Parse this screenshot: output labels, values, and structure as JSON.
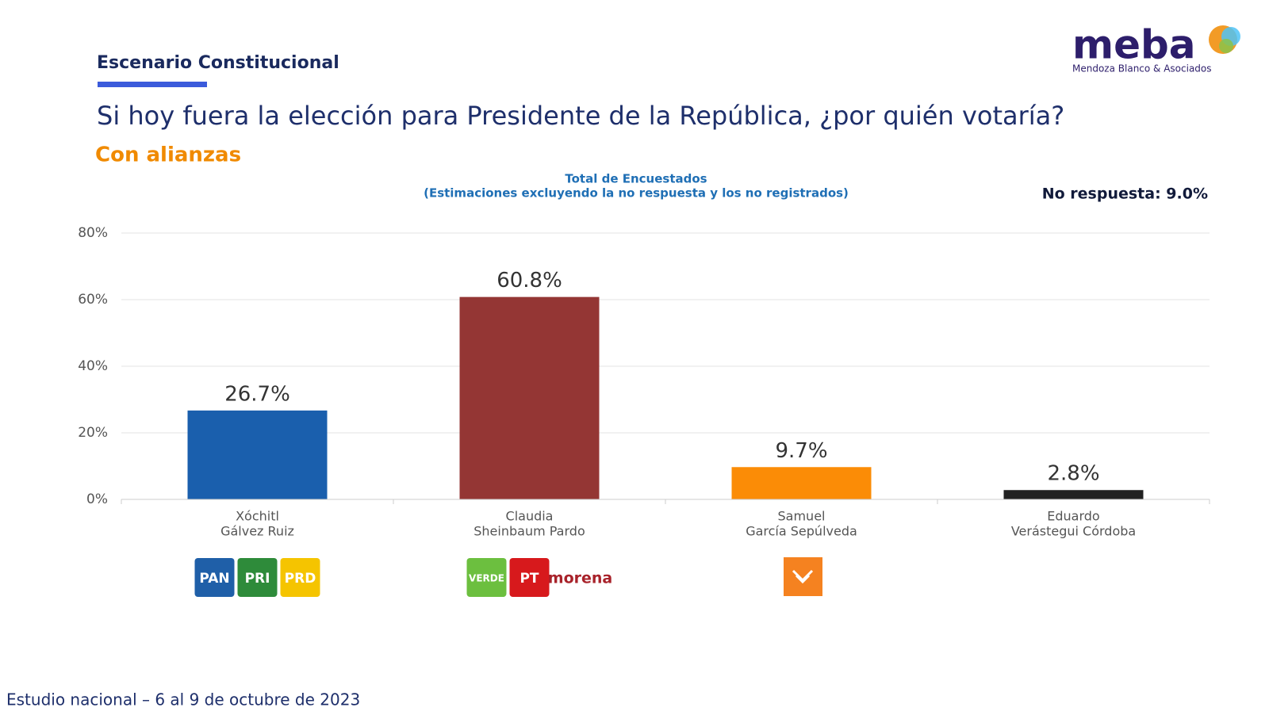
{
  "header": {
    "section": "Escenario Constitucional",
    "question": "Si hoy fuera la elección para Presidente de la República, ¿por quién votaría?",
    "subtitle": "Con alianzas",
    "logo": "meba",
    "logo_tagline": "Mendoza Blanco & Asociados"
  },
  "chart_data": {
    "type": "bar",
    "title": [
      "Total de Encuestados",
      "(Estimaciones excluyendo la no respuesta y los no registrados)"
    ],
    "note": "No respuesta: 9.0%",
    "categories": [
      [
        "Xóchitl",
        "Gálvez Ruiz"
      ],
      [
        "Claudia",
        "Sheinbaum Pardo"
      ],
      [
        "Samuel",
        "García Sepúlveda"
      ],
      [
        "Eduardo",
        "Verástegui Córdoba"
      ]
    ],
    "values": [
      26.7,
      60.8,
      9.7,
      2.8
    ],
    "value_labels": [
      "26.7%",
      "60.8%",
      "9.7%",
      "2.8%"
    ],
    "colors": [
      "#1a5fad",
      "#943634",
      "#fb8c06",
      "#222222"
    ],
    "party_logos": [
      [
        {
          "label": "PAN",
          "color": "#1f5fa8"
        },
        {
          "label": "PRI",
          "color": "#2e8b3a"
        },
        {
          "label": "PRD",
          "color": "#f5c400"
        }
      ],
      [
        {
          "label": "VERDE",
          "color": "#6cbf3f"
        },
        {
          "label": "PT",
          "color": "#d7191c"
        },
        {
          "label": "morena",
          "color": "#a8222a"
        }
      ],
      [],
      []
    ],
    "ylim": [
      0,
      80
    ],
    "yticks": [
      {
        "value": 0,
        "label": "0%"
      },
      {
        "value": 20,
        "label": "20%"
      },
      {
        "value": 40,
        "label": "40%"
      },
      {
        "value": 60,
        "label": "60%"
      },
      {
        "value": 80,
        "label": "80%"
      }
    ],
    "grid": true
  },
  "footer": "Estudio nacional – 6 al 9 de octubre de 2023"
}
